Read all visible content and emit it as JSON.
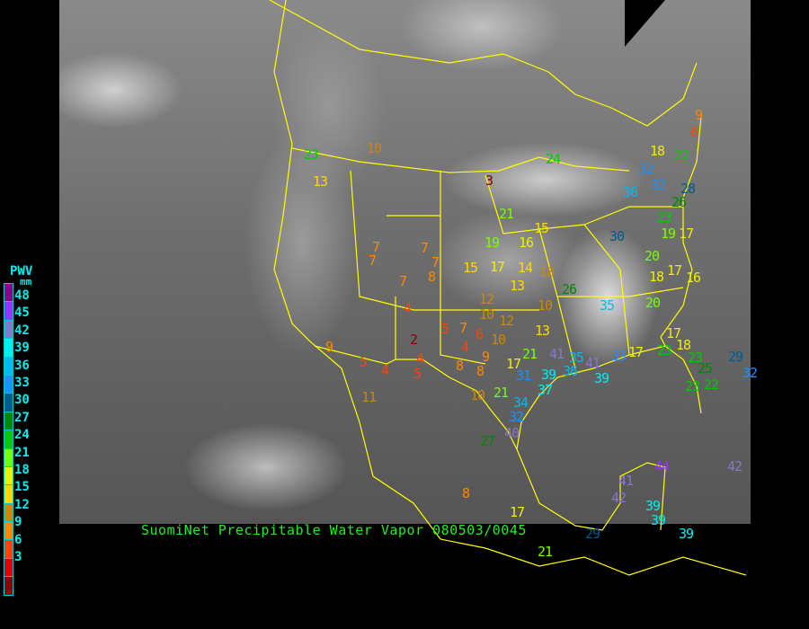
{
  "title": "SuomiNet Precipitable Water Vapor 080503/0045",
  "colorbar": {
    "title": "PWV",
    "unit": "mm",
    "ticks": [
      "48",
      "45",
      "42",
      "39",
      "36",
      "33",
      "30",
      "27",
      "24",
      "21",
      "18",
      "15",
      "12",
      "9",
      "6",
      "3"
    ],
    "colors": [
      "#8b008b",
      "#9933ff",
      "#8877cc",
      "#00eeee",
      "#00bbee",
      "#1e90ff",
      "#005a8c",
      "#008800",
      "#00cc00",
      "#77ff00",
      "#eeee00",
      "#ffd700",
      "#cc8800",
      "#ff8800",
      "#ff4400",
      "#dd0000",
      "#880000"
    ]
  },
  "stations": [
    23,
    13,
    10,
    24,
    3,
    21,
    19,
    16,
    15,
    7,
    7,
    7,
    7,
    8,
    15,
    17,
    14,
    10,
    13,
    7,
    26,
    12,
    10,
    10,
    12,
    4,
    35,
    20,
    18,
    17,
    16,
    5,
    7,
    6,
    13,
    2,
    10,
    4,
    9,
    21,
    41,
    35,
    9,
    17,
    5,
    4,
    4,
    5,
    8,
    8,
    31,
    39,
    36,
    41,
    39,
    33,
    17,
    23,
    18,
    17,
    23,
    25,
    23,
    22,
    29,
    32,
    37,
    34,
    32,
    10,
    21,
    11,
    40,
    27,
    8,
    41,
    42,
    44,
    42,
    39,
    39,
    39,
    29,
    21,
    9,
    6,
    18,
    22,
    32,
    32,
    36,
    28,
    26,
    23,
    30,
    19,
    17,
    20,
    17
  ]
}
